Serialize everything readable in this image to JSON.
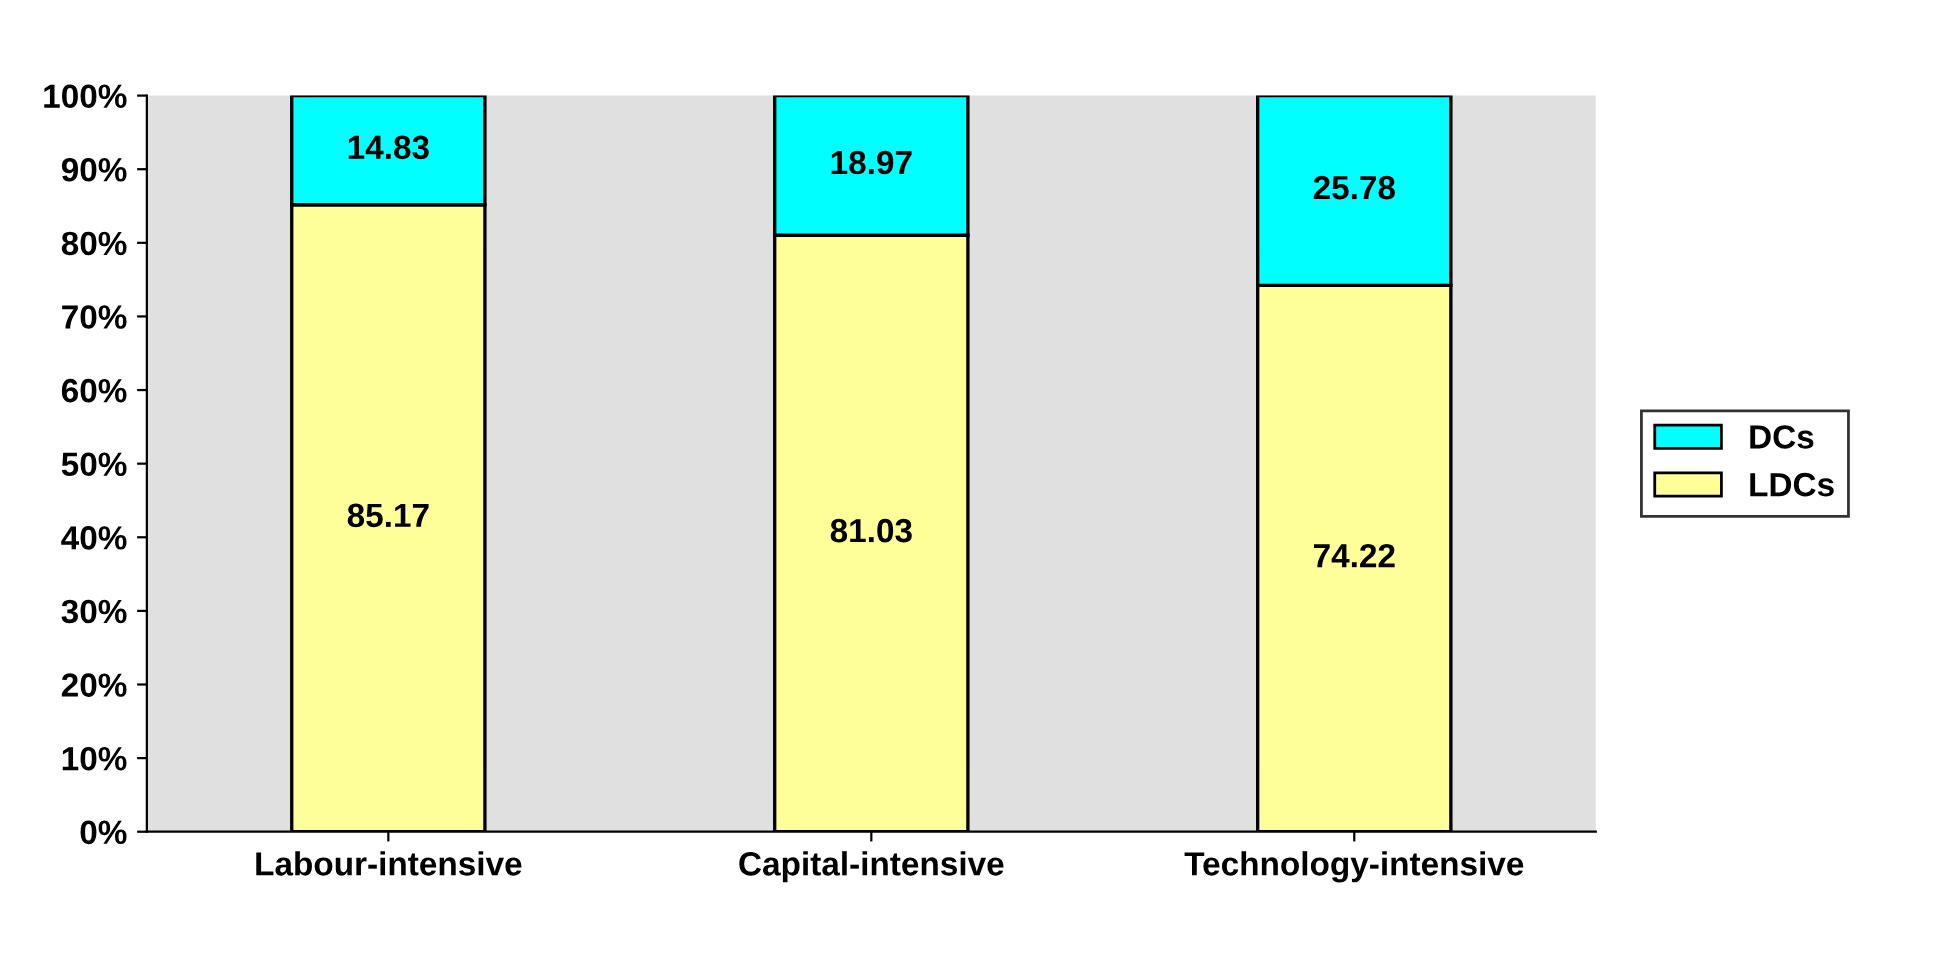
{
  "chart_data": {
    "type": "bar",
    "stacked": true,
    "data_labels": true,
    "grid": false,
    "legend": "right",
    "categories": [
      "Labour-intensive",
      "Capital-intensive",
      "Technology-intensive"
    ],
    "series": [
      {
        "name": "LDCs",
        "color": "#ffff99",
        "values": [
          85.17,
          81.03,
          74.22
        ]
      },
      {
        "name": "DCs",
        "color": "#00ffff",
        "values": [
          14.83,
          18.97,
          25.78
        ]
      }
    ],
    "ylim": [
      0,
      100
    ],
    "yticks": [
      {
        "value": 0,
        "label": "0%"
      },
      {
        "value": 10,
        "label": "10%"
      },
      {
        "value": 20,
        "label": "20%"
      },
      {
        "value": 30,
        "label": "30%"
      },
      {
        "value": 40,
        "label": "40%"
      },
      {
        "value": 50,
        "label": "50%"
      },
      {
        "value": 60,
        "label": "60%"
      },
      {
        "value": 70,
        "label": "70%"
      },
      {
        "value": 80,
        "label": "80%"
      },
      {
        "value": 90,
        "label": "90%"
      },
      {
        "value": 100,
        "label": "100%"
      }
    ]
  }
}
